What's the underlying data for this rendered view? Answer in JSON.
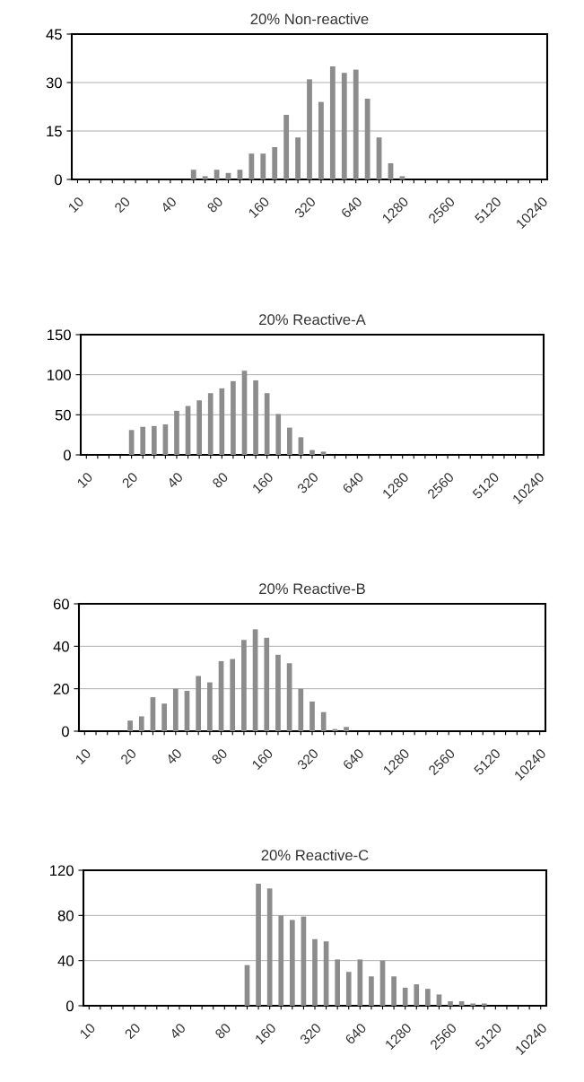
{
  "chart_data": [
    {
      "type": "bar",
      "title": "20% Non-reactive",
      "categories": [
        "10",
        null,
        null,
        null,
        "20",
        null,
        null,
        null,
        "40",
        null,
        null,
        null,
        "80",
        null,
        null,
        null,
        "160",
        null,
        null,
        null,
        "320",
        null,
        null,
        null,
        "640",
        null,
        null,
        null,
        "1280",
        null,
        null,
        null,
        "2560",
        null,
        null,
        null,
        "5120",
        null,
        null,
        null,
        "10240"
      ],
      "values": [
        0,
        0,
        0,
        0,
        0,
        0,
        0,
        0,
        0,
        0,
        3,
        1,
        3,
        2,
        3,
        8,
        8,
        10,
        20,
        13,
        31,
        24,
        35,
        33,
        34,
        25,
        13,
        5,
        1,
        0,
        0,
        0,
        0,
        0,
        0,
        0,
        0,
        0,
        0,
        0,
        0
      ],
      "color": "#8c8c8c",
      "ylim": [
        0,
        45
      ],
      "yticks": [
        0,
        15,
        30,
        45
      ],
      "grid": "y"
    },
    {
      "type": "bar",
      "title": "20% Reactive-A",
      "categories": [
        "10",
        null,
        null,
        null,
        "20",
        null,
        null,
        null,
        "40",
        null,
        null,
        null,
        "80",
        null,
        null,
        null,
        "160",
        null,
        null,
        null,
        "320",
        null,
        null,
        null,
        "640",
        null,
        null,
        null,
        "1280",
        null,
        null,
        null,
        "2560",
        null,
        null,
        null,
        "5120",
        null,
        null,
        null,
        "10240"
      ],
      "values": [
        0,
        0,
        0,
        0,
        31,
        35,
        36,
        38,
        55,
        61,
        68,
        77,
        83,
        92,
        105,
        93,
        77,
        51,
        34,
        22,
        6,
        4,
        0,
        0,
        0,
        0,
        0,
        0,
        0,
        0,
        0,
        0,
        0,
        0,
        0,
        0,
        0,
        0,
        0,
        0,
        0
      ],
      "color": "#8c8c8c",
      "ylim": [
        0,
        150
      ],
      "yticks": [
        0,
        50,
        100,
        150
      ],
      "grid": "y"
    },
    {
      "type": "bar",
      "title": "20% Reactive-B",
      "categories": [
        "10",
        null,
        null,
        null,
        "20",
        null,
        null,
        null,
        "40",
        null,
        null,
        null,
        "80",
        null,
        null,
        null,
        "160",
        null,
        null,
        null,
        "320",
        null,
        null,
        null,
        "640",
        null,
        null,
        null,
        "1280",
        null,
        null,
        null,
        "2560",
        null,
        null,
        null,
        "5120",
        null,
        null,
        null,
        "10240"
      ],
      "values": [
        0,
        0,
        0,
        0,
        5,
        7,
        16,
        13,
        20,
        19,
        26,
        23,
        33,
        34,
        43,
        48,
        44,
        36,
        32,
        20,
        14,
        9,
        1,
        2,
        0,
        0,
        0,
        0,
        0,
        0,
        0,
        0,
        0,
        0,
        0,
        0,
        0,
        0,
        0,
        0,
        0
      ],
      "color": "#8c8c8c",
      "ylim": [
        0,
        60
      ],
      "yticks": [
        0,
        20,
        40,
        60
      ],
      "grid": "y"
    },
    {
      "type": "bar",
      "title": "20% Reactive-C",
      "categories": [
        "10",
        null,
        null,
        null,
        "20",
        null,
        null,
        null,
        "40",
        null,
        null,
        null,
        "80",
        null,
        null,
        null,
        "160",
        null,
        null,
        null,
        "320",
        null,
        null,
        null,
        "640",
        null,
        null,
        null,
        "1280",
        null,
        null,
        null,
        "2560",
        null,
        null,
        null,
        "5120",
        null,
        null,
        null,
        "10240"
      ],
      "values": [
        0,
        0,
        0,
        0,
        0,
        0,
        0,
        0,
        0,
        0,
        0,
        0,
        0,
        0,
        36,
        108,
        104,
        80,
        76,
        79,
        59,
        57,
        41,
        30,
        41,
        26,
        40,
        26,
        16,
        19,
        15,
        10,
        4,
        4,
        2,
        2,
        0,
        0,
        0,
        0,
        0
      ],
      "color": "#8c8c8c",
      "ylim": [
        0,
        120
      ],
      "yticks": [
        0,
        40,
        80,
        120
      ],
      "grid": "y"
    }
  ]
}
